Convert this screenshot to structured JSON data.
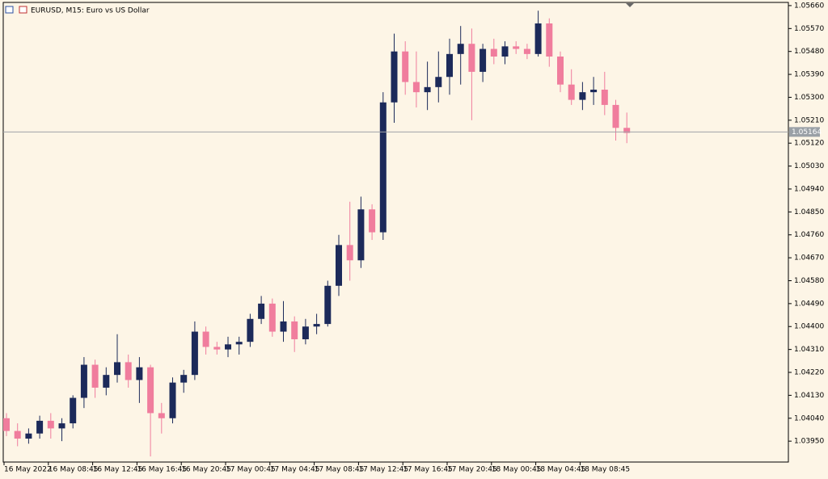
{
  "chart_data": {
    "type": "candlestick",
    "title": "EURUSD, M15:  Euro vs US Dollar",
    "up_color": "#1c2a5a",
    "down_color": "#f07d9d",
    "categories": [
      "16 May 2022",
      null,
      null,
      null,
      "16 May 08:45",
      null,
      null,
      null,
      "16 May 12:45",
      null,
      null,
      null,
      "16 May 16:45",
      null,
      null,
      null,
      "16 May 20:45",
      null,
      null,
      null,
      "17 May 00:45",
      null,
      null,
      null,
      "17 May 04:45",
      null,
      null,
      null,
      "17 May 08:45",
      null,
      null,
      null,
      "17 May 12:45",
      null,
      null,
      null,
      "17 May 16:45",
      null,
      null,
      null,
      "17 May 20:45",
      null,
      null,
      null,
      "18 May 00:45",
      null,
      null,
      null,
      "18 May 04:45",
      null,
      null,
      null,
      "18 May 08:45",
      null,
      null,
      null,
      null
    ],
    "open": [
      1.0404,
      1.0399,
      1.0396,
      1.0398,
      1.0403,
      1.04,
      1.0402,
      1.0412,
      1.0425,
      1.0416,
      1.0421,
      1.0426,
      1.0419,
      1.0424,
      1.0406,
      1.0404,
      1.0418,
      1.0421,
      1.0438,
      1.0432,
      1.0431,
      1.0433,
      1.0434,
      1.0443,
      1.0449,
      1.0438,
      1.0442,
      1.0435,
      1.044,
      1.0441,
      1.0456,
      1.0472,
      1.0466,
      1.0486,
      1.0477,
      1.0528,
      1.0548,
      1.0536,
      1.0532,
      1.0534,
      1.0538,
      1.0547,
      1.0551,
      1.054,
      1.0549,
      1.0546,
      1.055,
      1.0549,
      1.0547,
      1.0559,
      1.0546,
      1.0535,
      1.0529,
      1.0532,
      1.0533,
      1.0527,
      1.0518
    ],
    "high": [
      1.0406,
      1.0402,
      1.04,
      1.0405,
      1.0406,
      1.0404,
      1.0413,
      1.0428,
      1.0427,
      1.0424,
      1.0437,
      1.0429,
      1.0428,
      1.0425,
      1.041,
      1.042,
      1.0423,
      1.0442,
      1.044,
      1.0434,
      1.0436,
      1.0436,
      1.0445,
      1.0452,
      1.0451,
      1.045,
      1.0444,
      1.0443,
      1.0445,
      1.0458,
      1.0476,
      1.0489,
      1.0491,
      1.0488,
      1.0532,
      1.0555,
      1.0552,
      1.0548,
      1.0544,
      1.0548,
      1.0553,
      1.0558,
      1.0557,
      1.0551,
      1.0553,
      1.0552,
      1.0552,
      1.0551,
      1.0564,
      1.0561,
      1.0548,
      1.0541,
      1.0536,
      1.0538,
      1.054,
      1.0529,
      1.0524
    ],
    "low": [
      1.0397,
      1.0393,
      1.0394,
      1.0396,
      1.0396,
      1.0395,
      1.04,
      1.0408,
      1.0412,
      1.0413,
      1.0418,
      1.0416,
      1.041,
      1.0389,
      1.0398,
      1.0402,
      1.0414,
      1.0419,
      1.0429,
      1.0429,
      1.0428,
      1.0429,
      1.0432,
      1.0441,
      1.0436,
      1.0434,
      1.043,
      1.0433,
      1.0437,
      1.044,
      1.0452,
      1.0458,
      1.0463,
      1.0474,
      1.0474,
      1.052,
      1.0531,
      1.0526,
      1.0525,
      1.0528,
      1.0531,
      1.0535,
      1.0521,
      1.0536,
      1.0543,
      1.0543,
      1.0547,
      1.0545,
      1.0546,
      1.0542,
      1.0532,
      1.0527,
      1.0525,
      1.0527,
      1.0523,
      1.0513,
      1.0512
    ],
    "close": [
      1.0399,
      1.0396,
      1.0398,
      1.0403,
      1.04,
      1.0402,
      1.0412,
      1.0425,
      1.0416,
      1.0421,
      1.0426,
      1.0419,
      1.0424,
      1.0406,
      1.0404,
      1.0418,
      1.0421,
      1.0438,
      1.0432,
      1.0431,
      1.0433,
      1.0434,
      1.0443,
      1.0449,
      1.0438,
      1.0442,
      1.0435,
      1.044,
      1.0441,
      1.0456,
      1.0472,
      1.0466,
      1.0486,
      1.0477,
      1.0528,
      1.0548,
      1.0536,
      1.0532,
      1.0534,
      1.0538,
      1.0547,
      1.0551,
      1.054,
      1.0549,
      1.0546,
      1.055,
      1.0549,
      1.0547,
      1.0559,
      1.0546,
      1.0535,
      1.0529,
      1.0532,
      1.0533,
      1.0527,
      1.0518,
      1.0516
    ],
    "ylim": [
      1.03868,
      1.05682
    ],
    "yticks": [
      {
        "value": 1.0566,
        "label": "1.05660"
      },
      {
        "value": 1.0557,
        "label": "1.05570"
      },
      {
        "value": 1.0548,
        "label": "1.05480"
      },
      {
        "value": 1.0539,
        "label": "1.05390"
      },
      {
        "value": 1.053,
        "label": "1.05300"
      },
      {
        "value": 1.0521,
        "label": "1.05210"
      },
      {
        "value": 1.0512,
        "label": "1.05120"
      },
      {
        "value": 1.0503,
        "label": "1.05030"
      },
      {
        "value": 1.0494,
        "label": "1.04940"
      },
      {
        "value": 1.0485,
        "label": "1.04850"
      },
      {
        "value": 1.0476,
        "label": "1.04760"
      },
      {
        "value": 1.0467,
        "label": "1.04670"
      },
      {
        "value": 1.0458,
        "label": "1.04580"
      },
      {
        "value": 1.0449,
        "label": "1.04490"
      },
      {
        "value": 1.044,
        "label": "1.04400"
      },
      {
        "value": 1.0431,
        "label": "1.04310"
      },
      {
        "value": 1.0422,
        "label": "1.04220"
      },
      {
        "value": 1.0413,
        "label": "1.04130"
      },
      {
        "value": 1.0404,
        "label": "1.04040"
      },
      {
        "value": 1.0395,
        "label": "1.03950"
      }
    ],
    "last_price": {
      "value": 1.05164,
      "label": "1.05164"
    }
  }
}
